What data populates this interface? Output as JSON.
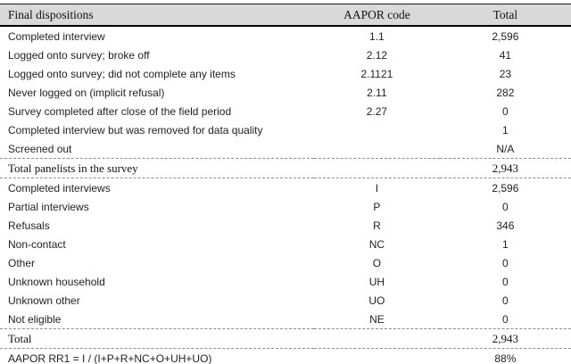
{
  "table": {
    "header": {
      "col1": "Final dispositions",
      "col2": "AAPOR code",
      "col3": "Total"
    },
    "rows": [
      {
        "label": "Completed interview",
        "code": "1.1",
        "total": "2,596",
        "kind": "data"
      },
      {
        "label": "Logged onto survey; broke off",
        "code": "2.12",
        "total": "41",
        "kind": "data"
      },
      {
        "label": "Logged onto survey; did not complete any items",
        "code": "2.1121",
        "total": "23",
        "kind": "data"
      },
      {
        "label": "Never logged on (implicit refusal)",
        "code": "2.11",
        "total": "282",
        "kind": "data"
      },
      {
        "label": "Survey completed after close of the field period",
        "code": "2.27",
        "total": "0",
        "kind": "data"
      },
      {
        "label": "Completed interview but was removed for data quality",
        "code": "",
        "total": "1",
        "kind": "data"
      },
      {
        "label": "Screened out",
        "code": "",
        "total": "N/A",
        "kind": "data"
      },
      {
        "label": "Total panelists in the survey",
        "code": "",
        "total": "2,943",
        "kind": "total"
      },
      {
        "label": "Completed interviews",
        "code": "I",
        "total": "2,596",
        "kind": "data"
      },
      {
        "label": "Partial interviews",
        "code": "P",
        "total": "0",
        "kind": "data"
      },
      {
        "label": "Refusals",
        "code": "R",
        "total": "346",
        "kind": "data"
      },
      {
        "label": "Non-contact",
        "code": "NC",
        "total": "1",
        "kind": "data"
      },
      {
        "label": "Other",
        "code": "O",
        "total": "0",
        "kind": "data"
      },
      {
        "label": "Unknown household",
        "code": "UH",
        "total": "0",
        "kind": "data"
      },
      {
        "label": "Unknown other",
        "code": "UO",
        "total": "0",
        "kind": "data"
      },
      {
        "label": "Not eligible",
        "code": "NE",
        "total": "0",
        "kind": "data"
      },
      {
        "label": "Total",
        "code": "",
        "total": "2,943",
        "kind": "total"
      },
      {
        "label": "AAPOR RR1 = I / (I+P+R+NC+O+UH+UO)",
        "code": "",
        "total": "88%",
        "kind": "formula"
      }
    ],
    "colors": {
      "header_bg": "#d9d9d9",
      "rule": "#000000",
      "dashed_rule": "#8c8c8c"
    }
  }
}
